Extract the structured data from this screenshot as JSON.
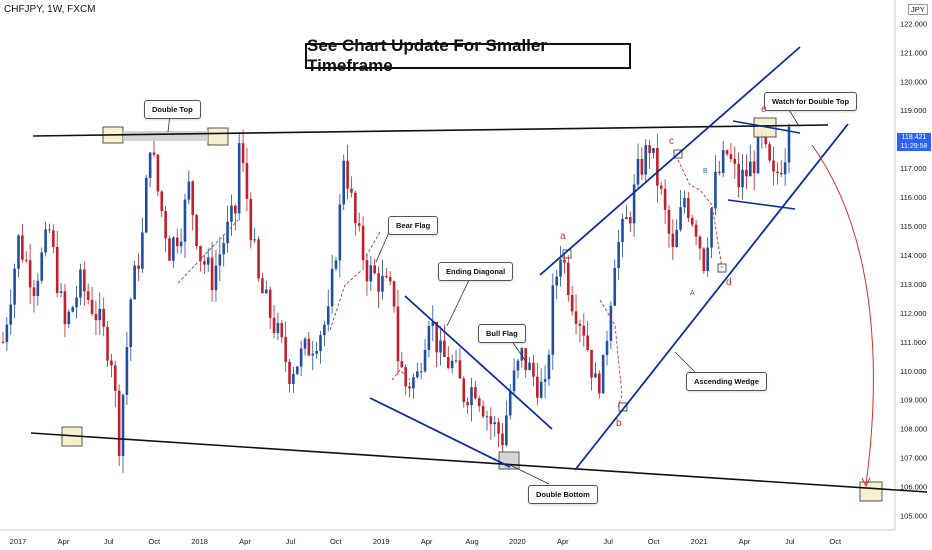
{
  "header": {
    "ticker": "CHFJPY, 1W, FXCM",
    "currency": "JPY"
  },
  "headline": "See Chart Update For Smaller Timeframe",
  "price_badge": {
    "price": "118.421",
    "countdown": "11:29:58"
  },
  "callouts": {
    "double_top": "Double Top",
    "bear_flag": "Bear Flag",
    "ending_diagonal": "Ending Diagonal",
    "bull_flag": "Bull Flag",
    "double_bottom": "Double Bottom",
    "ascending_wedge": "Ascending Wedge",
    "watch": "Watch for Double Top"
  },
  "waves": {
    "a": "a",
    "b": "b",
    "c": "c",
    "d": "d",
    "e": "e",
    "A": "A",
    "B": "B"
  },
  "colors": {
    "up": "#1f4fa3",
    "down": "#c41e2a",
    "trend": "#0b2fa0",
    "line": "#111111",
    "badge": "#2962ff"
  },
  "chart_data": {
    "type": "candlestick",
    "timeframe": "1W",
    "ylim": [
      104.5,
      122.6
    ],
    "y_ticks": [
      105.0,
      106.0,
      107.0,
      108.0,
      109.0,
      110.0,
      111.0,
      112.0,
      113.0,
      114.0,
      115.0,
      116.0,
      117.0,
      118.0,
      119.0,
      120.0,
      121.0,
      122.0
    ],
    "x_ticks": [
      "2017",
      "Apr",
      "Jul",
      "Oct",
      "2018",
      "Apr",
      "Jul",
      "Oct",
      "2019",
      "Apr",
      "Aug",
      "2020",
      "Apr",
      "Jul",
      "Oct",
      "2021",
      "Apr",
      "Jul",
      "Oct"
    ],
    "last_price": 118.421,
    "close_path": [
      [
        0,
        111.0
      ],
      [
        4,
        114.5
      ],
      [
        8,
        113.0
      ],
      [
        12,
        114.8
      ],
      [
        16,
        111.5
      ],
      [
        20,
        113.0
      ],
      [
        24,
        112.0
      ],
      [
        28,
        110.5
      ],
      [
        30,
        107.6
      ],
      [
        33,
        112.5
      ],
      [
        36,
        114.6
      ],
      [
        38,
        118.0
      ],
      [
        40,
        116.2
      ],
      [
        43,
        114.2
      ],
      [
        46,
        115.0
      ],
      [
        48,
        116.3
      ],
      [
        51,
        114.0
      ],
      [
        54,
        113.2
      ],
      [
        57,
        114.5
      ],
      [
        60,
        115.5
      ],
      [
        61,
        117.8
      ],
      [
        63,
        116.0
      ],
      [
        66,
        113.0
      ],
      [
        70,
        111.6
      ],
      [
        74,
        110.0
      ],
      [
        77,
        110.5
      ],
      [
        80,
        111.0
      ],
      [
        84,
        111.8
      ],
      [
        87,
        115.5
      ],
      [
        88,
        117.5
      ],
      [
        91,
        115.0
      ],
      [
        94,
        113.5
      ],
      [
        98,
        113.0
      ],
      [
        101,
        112.5
      ],
      [
        102,
        110.5
      ],
      [
        104,
        109.5
      ],
      [
        107,
        109.8
      ],
      [
        110,
        112.0
      ],
      [
        113,
        110.5
      ],
      [
        116,
        110.2
      ],
      [
        119,
        109.2
      ],
      [
        122,
        109.5
      ],
      [
        126,
        108.2
      ],
      [
        129,
        107.7
      ],
      [
        131,
        109.3
      ],
      [
        134,
        110.5
      ],
      [
        137,
        109.8
      ],
      [
        140,
        109.2
      ],
      [
        142,
        112.5
      ],
      [
        144,
        114.2
      ],
      [
        147,
        112.5
      ],
      [
        150,
        111.5
      ],
      [
        153,
        109.5
      ],
      [
        155,
        110.0
      ],
      [
        158,
        114.0
      ],
      [
        162,
        115.5
      ],
      [
        164,
        116.8
      ],
      [
        167,
        117.8
      ],
      [
        170,
        116.0
      ],
      [
        173,
        114.0
      ],
      [
        176,
        116.0
      ],
      [
        179,
        115.0
      ],
      [
        181,
        113.8
      ],
      [
        184,
        116.5
      ],
      [
        187,
        117.5
      ],
      [
        190,
        116.5
      ],
      [
        193,
        117.0
      ],
      [
        196,
        117.8
      ],
      [
        199,
        116.5
      ],
      [
        202,
        117.6
      ],
      [
        203,
        118.4
      ]
    ],
    "annotations": [
      "Double Top",
      "Bear Flag",
      "Ending Diagonal",
      "Bull Flag",
      "Double Bottom",
      "Ascending Wedge",
      "Watch for Double Top"
    ]
  }
}
